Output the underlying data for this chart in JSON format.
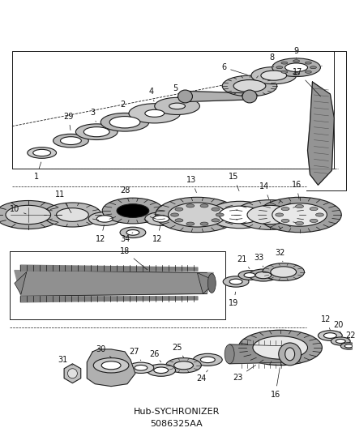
{
  "background_color": "#ffffff",
  "line_color": "#1a1a1a",
  "fig_width": 4.38,
  "fig_height": 5.33,
  "title1": "Hub-SYCHRONIZER",
  "title2": "5086325AA",
  "iso_ratio": 0.35
}
